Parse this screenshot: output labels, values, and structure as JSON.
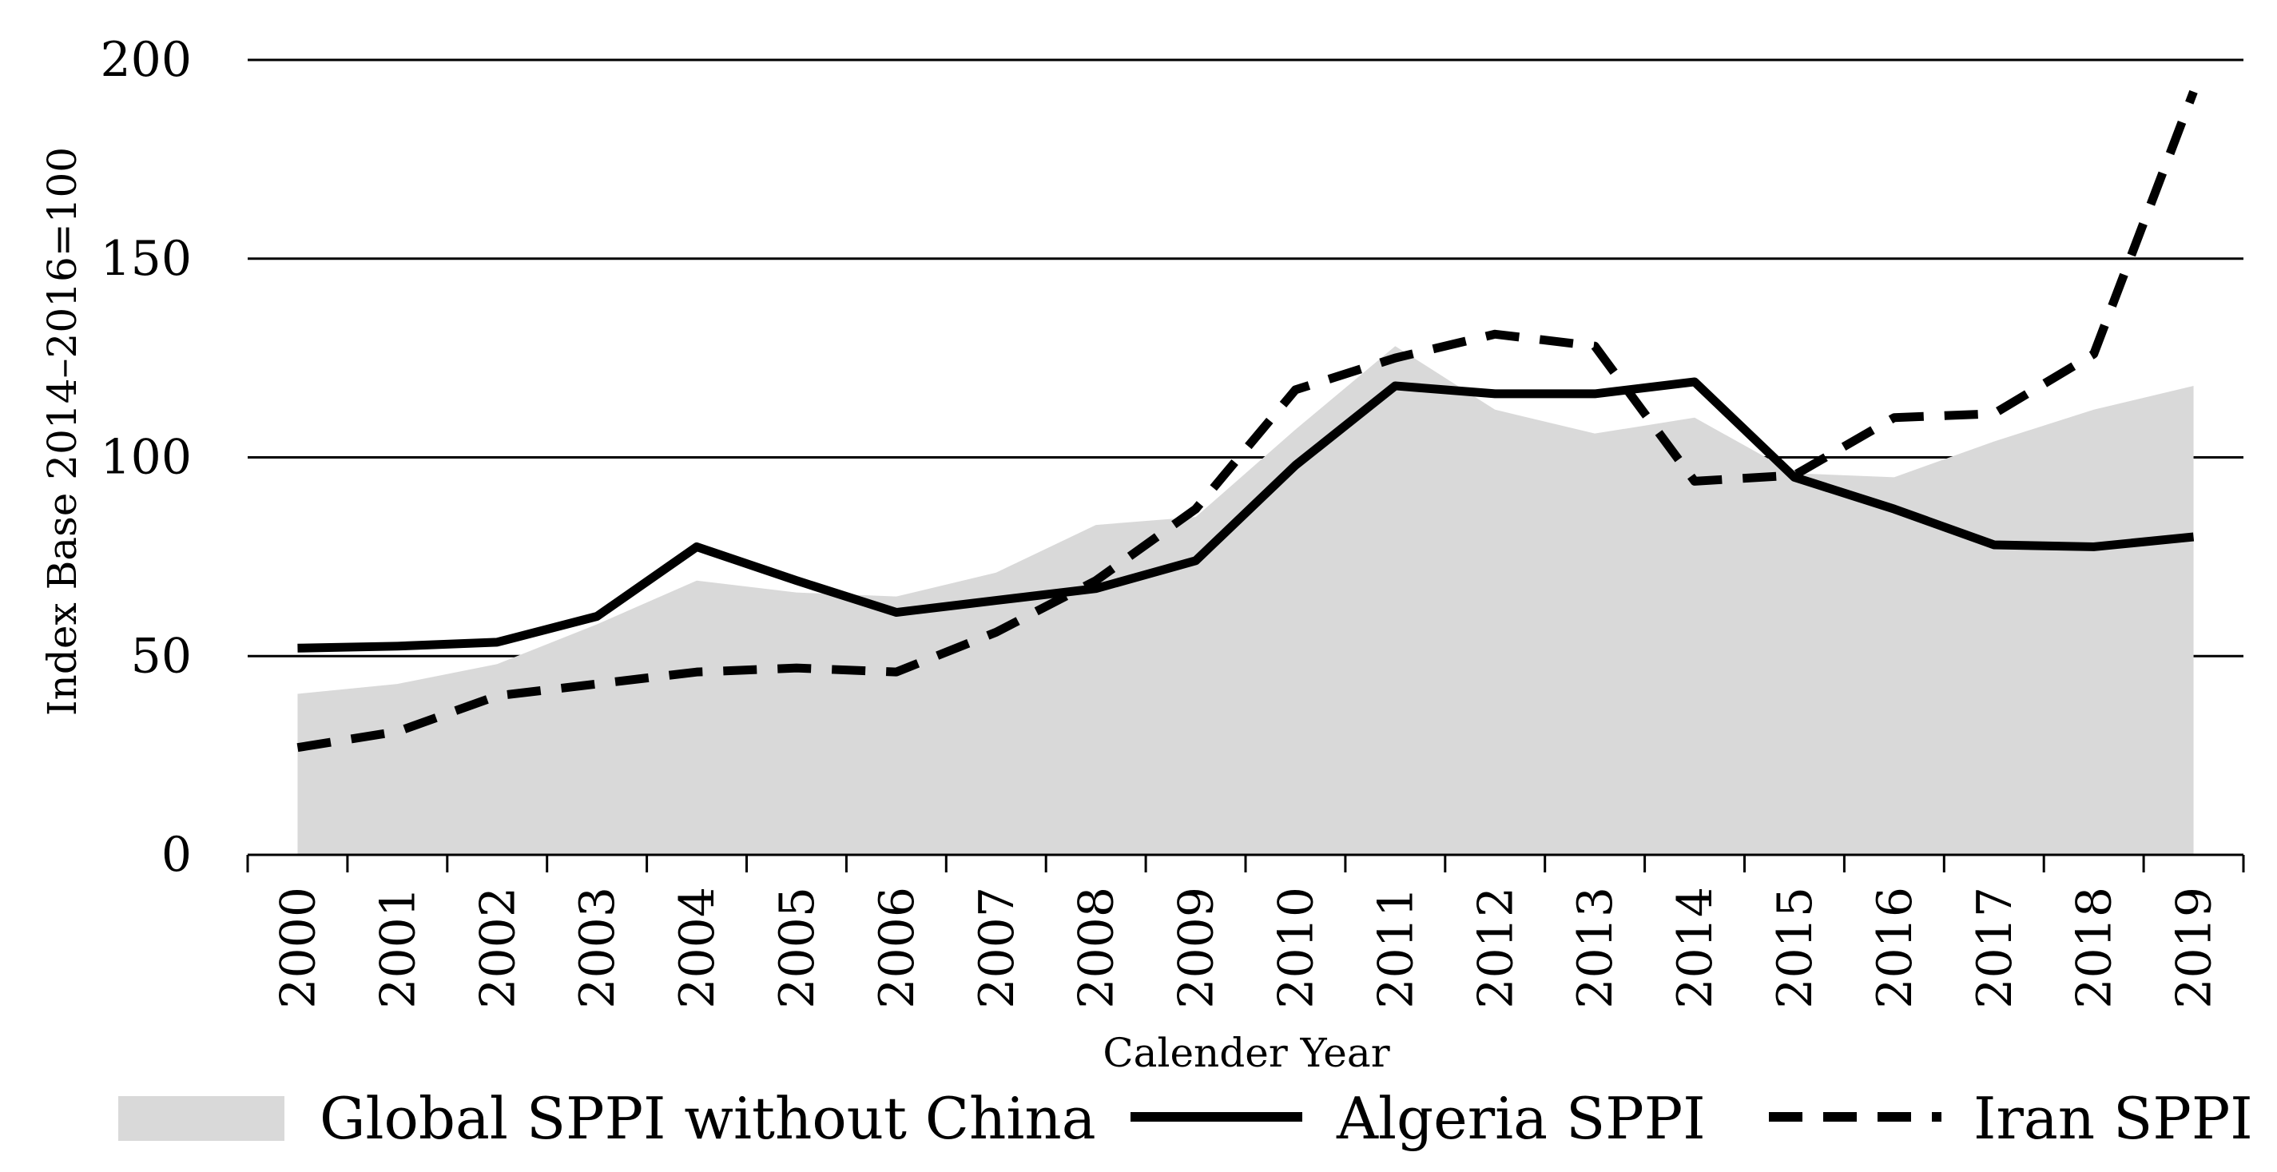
{
  "chart_data": {
    "type": "line",
    "title": "",
    "xlabel": "Calender Year",
    "ylabel": "Index Base 2014–2016=100",
    "ylim": [
      0,
      200
    ],
    "yticks": [
      "0",
      "50",
      "100",
      "150",
      "200"
    ],
    "categories": [
      "2000",
      "2001",
      "2002",
      "2003",
      "2004",
      "2005",
      "2006",
      "2007",
      "2008",
      "2009",
      "2010",
      "2011",
      "2012",
      "2013",
      "2014",
      "2015",
      "2016",
      "2017",
      "2018",
      "2019"
    ],
    "grid": "horizontal",
    "legend_position": "bottom",
    "series": [
      {
        "name": "Global SPPI without China",
        "kind": "area",
        "color": "#d9d9d9",
        "values": [
          40.5,
          43,
          48,
          58,
          69,
          66,
          65,
          71,
          83,
          85,
          107,
          128,
          112,
          106,
          110,
          96,
          95,
          104,
          112,
          118
        ]
      },
      {
        "name": "Algeria SPPI",
        "kind": "line",
        "style": "solid",
        "color": "#000000",
        "values": [
          52,
          52.5,
          53.5,
          60,
          77.5,
          69,
          61,
          64,
          67,
          74,
          98,
          118,
          116,
          116,
          119,
          95,
          87,
          78,
          77.5,
          80
        ]
      },
      {
        "name": "Iran SPPI",
        "kind": "line",
        "style": "dashed",
        "color": "#000000",
        "values": [
          27,
          31,
          40,
          43,
          46,
          47,
          46,
          56,
          69,
          87,
          117,
          125,
          131,
          128,
          94,
          95.5,
          110,
          111,
          126,
          192
        ]
      }
    ]
  }
}
